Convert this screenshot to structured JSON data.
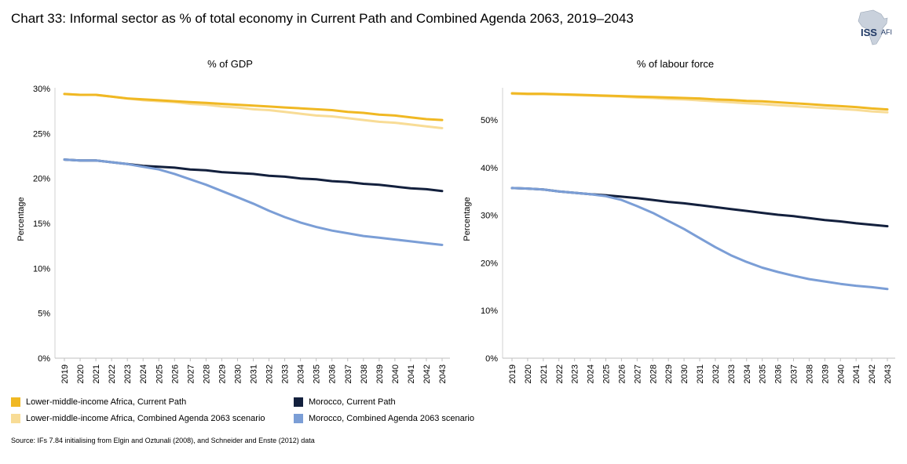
{
  "title": "Chart 33: Informal sector as % of total economy in Current Path and Combined Agenda 2063, 2019–2043",
  "logo": {
    "main": "ISS",
    "sub": "AFI"
  },
  "source": "Source: IFs 7.84 initialising  from Elgin and Oztunali (2008), and Schneider and Enste (2012) data",
  "legend": [
    {
      "label": "Lower-middle-income Africa, Current Path",
      "color": "#f0b823"
    },
    {
      "label": "Morocco, Current Path",
      "color": "#13203d"
    },
    {
      "label": "Lower-middle-income Africa, Combined Agenda 2063 scenario",
      "color": "#f8dc96"
    },
    {
      "label": "Morocco, Combined Agenda 2063 scenario",
      "color": "#7b9ed6"
    }
  ],
  "chart_data": [
    {
      "type": "line",
      "title": "% of GDP",
      "xlabel": "",
      "ylabel": "Percentage",
      "ylim": [
        0,
        30
      ],
      "yticks": [
        0,
        5,
        10,
        15,
        20,
        25,
        30
      ],
      "ytick_labels": [
        "0%",
        "5%",
        "10%",
        "15%",
        "20%",
        "25%",
        "30%"
      ],
      "grid": false,
      "x": [
        "2019",
        "2020",
        "2021",
        "2022",
        "2023",
        "2024",
        "2025",
        "2026",
        "2027",
        "2028",
        "2029",
        "2030",
        "2031",
        "2032",
        "2033",
        "2034",
        "2035",
        "2036",
        "2037",
        "2038",
        "2039",
        "2040",
        "2041",
        "2042",
        "2043"
      ],
      "series": [
        {
          "name": "Lower-middle-income Africa, Combined Agenda 2063 scenario",
          "color": "#f8dc96",
          "values": [
            29.4,
            29.3,
            29.3,
            29.1,
            28.9,
            28.7,
            28.6,
            28.5,
            28.3,
            28.2,
            28.0,
            27.9,
            27.7,
            27.6,
            27.4,
            27.2,
            27.0,
            26.9,
            26.7,
            26.5,
            26.3,
            26.2,
            26.0,
            25.8,
            25.6
          ]
        },
        {
          "name": "Lower-middle-income Africa, Current Path",
          "color": "#f0b823",
          "values": [
            29.4,
            29.3,
            29.3,
            29.1,
            28.9,
            28.8,
            28.7,
            28.6,
            28.5,
            28.4,
            28.3,
            28.2,
            28.1,
            28.0,
            27.9,
            27.8,
            27.7,
            27.6,
            27.4,
            27.3,
            27.1,
            27.0,
            26.8,
            26.6,
            26.5
          ]
        },
        {
          "name": "Morocco, Current Path",
          "color": "#13203d",
          "values": [
            22.1,
            22.0,
            22.0,
            21.8,
            21.6,
            21.4,
            21.3,
            21.2,
            21.0,
            20.9,
            20.7,
            20.6,
            20.5,
            20.3,
            20.2,
            20.0,
            19.9,
            19.7,
            19.6,
            19.4,
            19.3,
            19.1,
            18.9,
            18.8,
            18.6
          ]
        },
        {
          "name": "Morocco, Combined Agenda 2063 scenario",
          "color": "#7b9ed6",
          "values": [
            22.1,
            22.0,
            22.0,
            21.8,
            21.6,
            21.3,
            21.0,
            20.5,
            19.9,
            19.3,
            18.6,
            17.9,
            17.2,
            16.4,
            15.7,
            15.1,
            14.6,
            14.2,
            13.9,
            13.6,
            13.4,
            13.2,
            13.0,
            12.8,
            12.6
          ]
        }
      ]
    },
    {
      "type": "line",
      "title": "% of labour force",
      "xlabel": "",
      "ylabel": "Percentage",
      "ylim": [
        0,
        55
      ],
      "yticks": [
        0,
        10,
        20,
        30,
        40,
        50
      ],
      "ytick_labels": [
        "0%",
        "10%",
        "20%",
        "30%",
        "40%",
        "50%"
      ],
      "grid": false,
      "x": [
        "2019",
        "2020",
        "2021",
        "2022",
        "2023",
        "2024",
        "2025",
        "2026",
        "2027",
        "2028",
        "2029",
        "2030",
        "2031",
        "2032",
        "2033",
        "2034",
        "2035",
        "2036",
        "2037",
        "2038",
        "2039",
        "2040",
        "2041",
        "2042",
        "2043"
      ],
      "series": [
        {
          "name": "Lower-middle-income Africa, Combined Agenda 2063 scenario",
          "color": "#f8dc96",
          "values": [
            55.5,
            55.4,
            55.4,
            55.3,
            55.2,
            55.1,
            55.0,
            54.9,
            54.7,
            54.6,
            54.4,
            54.3,
            54.1,
            53.9,
            53.7,
            53.5,
            53.3,
            53.1,
            52.9,
            52.7,
            52.5,
            52.3,
            52.1,
            51.8,
            51.6
          ]
        },
        {
          "name": "Lower-middle-income Africa, Current Path",
          "color": "#f0b823",
          "values": [
            55.6,
            55.5,
            55.5,
            55.4,
            55.3,
            55.2,
            55.1,
            55.0,
            54.9,
            54.8,
            54.7,
            54.6,
            54.5,
            54.3,
            54.2,
            54.0,
            53.9,
            53.7,
            53.5,
            53.3,
            53.1,
            52.9,
            52.7,
            52.4,
            52.2
          ]
        },
        {
          "name": "Morocco, Current Path",
          "color": "#13203d",
          "values": [
            35.7,
            35.6,
            35.4,
            35.0,
            34.7,
            34.4,
            34.2,
            33.9,
            33.6,
            33.2,
            32.8,
            32.5,
            32.1,
            31.7,
            31.3,
            30.9,
            30.5,
            30.1,
            29.8,
            29.4,
            29.0,
            28.7,
            28.3,
            28.0,
            27.7
          ]
        },
        {
          "name": "Morocco, Combined Agenda 2063 scenario",
          "color": "#7b9ed6",
          "values": [
            35.7,
            35.6,
            35.4,
            35.0,
            34.7,
            34.4,
            34.0,
            33.2,
            31.9,
            30.5,
            28.8,
            27.1,
            25.2,
            23.3,
            21.6,
            20.2,
            19.0,
            18.1,
            17.3,
            16.6,
            16.1,
            15.6,
            15.2,
            14.9,
            14.5
          ]
        }
      ]
    }
  ]
}
